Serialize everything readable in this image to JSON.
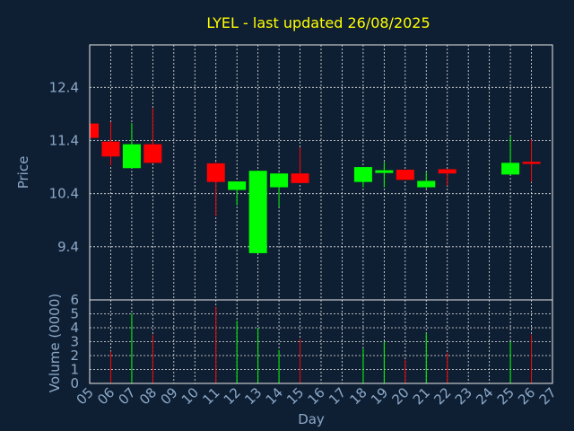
{
  "chart_data": {
    "type": "candlestick",
    "title": "LYEL - last updated 26/08/2025",
    "xlabel": "Day",
    "ylabel_price": "Price",
    "ylabel_volume": "Volume (0000)",
    "x_ticks": [
      "05",
      "06",
      "07",
      "08",
      "09",
      "10",
      "11",
      "12",
      "13",
      "14",
      "15",
      "16",
      "17",
      "18",
      "19",
      "20",
      "21",
      "22",
      "23",
      "24",
      "25",
      "26",
      "27"
    ],
    "price_ticks": [
      "9.4",
      "10.4",
      "11.4",
      "12.4"
    ],
    "price_tick_values": [
      9.4,
      10.4,
      11.4,
      12.4
    ],
    "price_ylim": [
      8.4,
      13.2
    ],
    "volume_ticks": [
      "0",
      "1",
      "2",
      "3",
      "4",
      "5",
      "6"
    ],
    "volume_ylim": [
      0,
      6
    ],
    "grid": true,
    "up_color": "#00ff00",
    "down_color": "#ff0000",
    "candles": [
      {
        "day": 5,
        "open": 11.72,
        "close": 11.45,
        "high": 11.72,
        "low": 11.45,
        "volume": 0
      },
      {
        "day": 6,
        "open": 11.38,
        "close": 11.1,
        "high": 11.75,
        "low": 10.93,
        "volume": 2.3
      },
      {
        "day": 7,
        "open": 10.88,
        "close": 11.33,
        "high": 11.73,
        "low": 10.88,
        "volume": 5.0
      },
      {
        "day": 8,
        "open": 11.33,
        "close": 10.98,
        "high": 12.01,
        "low": 10.98,
        "volume": 3.5
      },
      {
        "day": 11,
        "open": 10.97,
        "close": 10.62,
        "high": 11.0,
        "low": 9.98,
        "volume": 5.5
      },
      {
        "day": 12,
        "open": 10.47,
        "close": 10.63,
        "high": 10.63,
        "low": 10.18,
        "volume": 4.5
      },
      {
        "day": 13,
        "open": 9.28,
        "close": 10.83,
        "high": 10.83,
        "low": 9.28,
        "volume": 4.0
      },
      {
        "day": 14,
        "open": 10.52,
        "close": 10.78,
        "high": 10.78,
        "low": 10.15,
        "volume": 2.4
      },
      {
        "day": 15,
        "open": 10.78,
        "close": 10.6,
        "high": 11.27,
        "low": 10.6,
        "volume": 3.2
      },
      {
        "day": 18,
        "open": 10.62,
        "close": 10.9,
        "high": 10.9,
        "low": 10.52,
        "volume": 2.5
      },
      {
        "day": 19,
        "open": 10.79,
        "close": 10.84,
        "high": 11.0,
        "low": 10.52,
        "volume": 3.0
      },
      {
        "day": 20,
        "open": 10.85,
        "close": 10.66,
        "high": 10.85,
        "low": 10.66,
        "volume": 1.7
      },
      {
        "day": 21,
        "open": 10.52,
        "close": 10.64,
        "high": 10.8,
        "low": 10.5,
        "volume": 3.6
      },
      {
        "day": 22,
        "open": 10.86,
        "close": 10.78,
        "high": 10.86,
        "low": 10.55,
        "volume": 2.2
      },
      {
        "day": 25,
        "open": 10.76,
        "close": 10.98,
        "high": 11.48,
        "low": 10.76,
        "volume": 3.0
      },
      {
        "day": 26,
        "open": 11.0,
        "close": 10.96,
        "high": 11.42,
        "low": 10.62,
        "volume": 3.5
      }
    ]
  }
}
